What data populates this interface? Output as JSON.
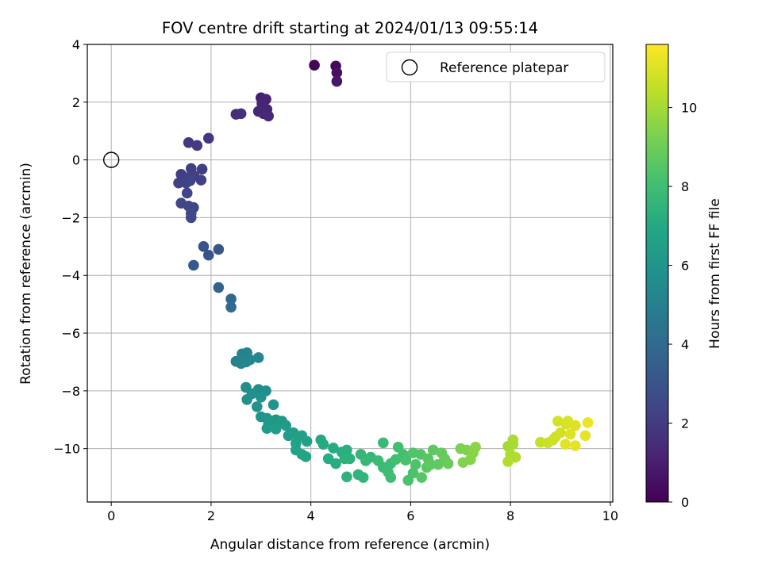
{
  "chart_data": {
    "type": "scatter",
    "title": "FOV centre drift starting at 2024/01/13 09:55:14",
    "xlabel": "Angular distance from reference (arcmin)",
    "ylabel": "Rotation from reference (arcmin)",
    "xlim": [
      -0.48,
      10.05
    ],
    "ylim": [
      -11.85,
      4.0
    ],
    "xticks": [
      0,
      2,
      4,
      6,
      8,
      10
    ],
    "yticks": [
      4,
      2,
      0,
      -2,
      -4,
      -6,
      -8,
      -10
    ],
    "xtick_labels": [
      "0",
      "2",
      "4",
      "6",
      "8",
      "10"
    ],
    "ytick_labels": [
      "4",
      "2",
      "0",
      "−2",
      "−4",
      "−6",
      "−8",
      "−10"
    ],
    "grid": true,
    "colormap": "viridis",
    "colorbar": {
      "label": "Hours from first FF file",
      "min": 0,
      "max": 11.6,
      "ticks": [
        0,
        2,
        4,
        6,
        8,
        10
      ],
      "tick_labels": [
        "0",
        "2",
        "4",
        "6",
        "8",
        "10"
      ]
    },
    "legend": {
      "entries": [
        "Reference platepar"
      ],
      "placement": "top-right"
    },
    "reference_point": {
      "x": 0,
      "y": 0
    },
    "points": [
      [
        4.07,
        3.28,
        0.1
      ],
      [
        4.5,
        3.25,
        0.3
      ],
      [
        4.52,
        3.02,
        0.5
      ],
      [
        4.52,
        2.72,
        0.7
      ],
      [
        3.0,
        2.15,
        1.0
      ],
      [
        3.1,
        2.1,
        1.1
      ],
      [
        3.02,
        1.95,
        1.15
      ],
      [
        3.12,
        1.75,
        1.2
      ],
      [
        2.95,
        1.68,
        1.25
      ],
      [
        3.05,
        1.6,
        1.3
      ],
      [
        3.15,
        1.52,
        1.35
      ],
      [
        2.5,
        1.58,
        1.5
      ],
      [
        2.6,
        1.6,
        1.55
      ],
      [
        1.95,
        0.75,
        1.8
      ],
      [
        1.55,
        0.6,
        1.9
      ],
      [
        1.72,
        0.5,
        2.0
      ],
      [
        1.4,
        -0.5,
        2.1
      ],
      [
        1.6,
        -0.3,
        2.1
      ],
      [
        1.82,
        -0.32,
        2.15
      ],
      [
        1.5,
        -0.62,
        2.15
      ],
      [
        1.66,
        -0.55,
        2.2
      ],
      [
        1.8,
        -0.7,
        2.2
      ],
      [
        1.35,
        -0.8,
        2.25
      ],
      [
        1.5,
        -0.8,
        2.25
      ],
      [
        1.58,
        -0.72,
        2.3
      ],
      [
        1.52,
        -1.15,
        2.35
      ],
      [
        1.4,
        -1.5,
        2.4
      ],
      [
        1.55,
        -1.6,
        2.4
      ],
      [
        1.65,
        -1.65,
        2.45
      ],
      [
        1.6,
        -1.85,
        2.5
      ],
      [
        1.6,
        -2.0,
        2.5
      ],
      [
        1.85,
        -3.0,
        2.9
      ],
      [
        1.95,
        -3.3,
        3.0
      ],
      [
        2.15,
        -3.1,
        3.1
      ],
      [
        1.65,
        -3.65,
        3.2
      ],
      [
        2.15,
        -4.42,
        3.6
      ],
      [
        2.4,
        -4.82,
        3.9
      ],
      [
        2.4,
        -5.1,
        4.0
      ],
      [
        2.5,
        -6.98,
        5.0
      ],
      [
        2.62,
        -6.72,
        5.1
      ],
      [
        2.72,
        -6.68,
        5.15
      ],
      [
        2.6,
        -7.05,
        5.2
      ],
      [
        2.78,
        -6.92,
        5.25
      ],
      [
        2.95,
        -6.85,
        5.3
      ],
      [
        2.7,
        -7.0,
        5.35
      ],
      [
        2.7,
        -7.88,
        5.6
      ],
      [
        2.95,
        -7.95,
        5.65
      ],
      [
        3.1,
        -8.0,
        5.7
      ],
      [
        2.82,
        -8.1,
        5.75
      ],
      [
        2.72,
        -8.3,
        5.8
      ],
      [
        3.0,
        -8.22,
        5.85
      ],
      [
        2.92,
        -8.55,
        5.9
      ],
      [
        3.25,
        -8.48,
        5.95
      ],
      [
        3.0,
        -8.9,
        6.0
      ],
      [
        3.12,
        -8.95,
        6.05
      ],
      [
        3.3,
        -9.0,
        6.1
      ],
      [
        3.42,
        -9.05,
        6.15
      ],
      [
        3.15,
        -9.15,
        6.2
      ],
      [
        3.5,
        -9.2,
        6.25
      ],
      [
        3.12,
        -9.3,
        6.3
      ],
      [
        3.3,
        -9.32,
        6.35
      ],
      [
        3.55,
        -9.55,
        6.4
      ],
      [
        3.65,
        -9.45,
        6.45
      ],
      [
        3.75,
        -9.6,
        6.5
      ],
      [
        3.82,
        -9.55,
        6.55
      ],
      [
        3.92,
        -9.75,
        6.6
      ],
      [
        3.7,
        -9.82,
        6.65
      ],
      [
        3.7,
        -10.05,
        6.7
      ],
      [
        3.82,
        -10.2,
        6.75
      ],
      [
        3.9,
        -10.28,
        6.8
      ],
      [
        4.2,
        -9.7,
        7.0
      ],
      [
        4.25,
        -9.85,
        7.05
      ],
      [
        4.45,
        -9.98,
        7.1
      ],
      [
        4.35,
        -10.35,
        7.15
      ],
      [
        4.5,
        -10.52,
        7.2
      ],
      [
        4.62,
        -10.12,
        7.25
      ],
      [
        4.72,
        -10.05,
        7.3
      ],
      [
        4.78,
        -10.35,
        7.35
      ],
      [
        4.68,
        -10.35,
        7.4
      ],
      [
        4.72,
        -10.98,
        7.45
      ],
      [
        4.95,
        -10.9,
        7.5
      ],
      [
        5.05,
        -11.0,
        7.55
      ],
      [
        5.0,
        -10.2,
        7.6
      ],
      [
        5.2,
        -10.3,
        7.65
      ],
      [
        5.1,
        -10.42,
        7.7
      ],
      [
        5.45,
        -9.8,
        7.75
      ],
      [
        5.35,
        -10.42,
        7.8
      ],
      [
        5.45,
        -10.65,
        7.85
      ],
      [
        5.6,
        -10.52,
        7.9
      ],
      [
        5.55,
        -10.82,
        7.95
      ],
      [
        5.6,
        -11.0,
        8.0
      ],
      [
        5.75,
        -9.95,
        8.05
      ],
      [
        5.7,
        -10.38,
        8.1
      ],
      [
        5.85,
        -10.2,
        8.15
      ],
      [
        5.9,
        -10.4,
        8.2
      ],
      [
        5.95,
        -11.1,
        8.25
      ],
      [
        6.05,
        -10.85,
        8.3
      ],
      [
        6.1,
        -10.55,
        8.35
      ],
      [
        6.05,
        -10.15,
        8.4
      ],
      [
        6.2,
        -10.2,
        8.45
      ],
      [
        6.22,
        -11.0,
        8.5
      ],
      [
        6.35,
        -10.35,
        8.55
      ],
      [
        6.32,
        -10.65,
        8.6
      ],
      [
        6.45,
        -10.05,
        8.65
      ],
      [
        6.4,
        -10.55,
        8.7
      ],
      [
        6.55,
        -10.55,
        8.75
      ],
      [
        6.62,
        -10.15,
        8.8
      ],
      [
        6.68,
        -10.35,
        8.85
      ],
      [
        6.75,
        -10.52,
        8.9
      ],
      [
        7.0,
        -10.0,
        9.3
      ],
      [
        7.12,
        -10.05,
        9.35
      ],
      [
        7.05,
        -10.48,
        9.4
      ],
      [
        7.2,
        -10.38,
        9.45
      ],
      [
        7.25,
        -10.15,
        9.5
      ],
      [
        7.3,
        -9.95,
        9.55
      ],
      [
        7.95,
        -9.92,
        10.0
      ],
      [
        8.05,
        -9.85,
        10.05
      ],
      [
        8.05,
        -9.7,
        10.1
      ],
      [
        8.0,
        -10.2,
        10.15
      ],
      [
        8.1,
        -10.3,
        10.2
      ],
      [
        7.95,
        -10.45,
        10.25
      ],
      [
        8.6,
        -9.78,
        10.6
      ],
      [
        8.75,
        -9.8,
        10.65
      ],
      [
        8.85,
        -9.7,
        10.7
      ],
      [
        8.9,
        -9.6,
        10.75
      ],
      [
        9.0,
        -9.45,
        10.8
      ],
      [
        8.95,
        -9.05,
        10.85
      ],
      [
        9.12,
        -9.15,
        10.9
      ],
      [
        9.15,
        -9.05,
        10.95
      ],
      [
        9.3,
        -9.2,
        11.0
      ],
      [
        9.2,
        -9.5,
        11.05
      ],
      [
        9.1,
        -9.85,
        11.1
      ],
      [
        9.3,
        -9.9,
        11.15
      ],
      [
        9.5,
        -9.55,
        11.2
      ],
      [
        9.55,
        -9.1,
        11.3
      ]
    ]
  }
}
